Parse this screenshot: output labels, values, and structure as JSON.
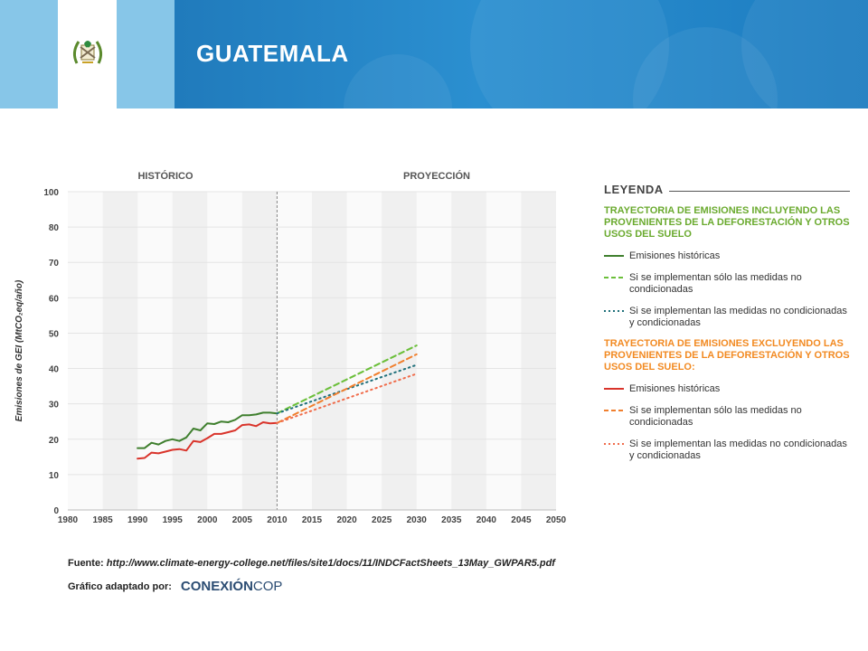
{
  "header": {
    "title": "GUATEMALA",
    "flag_colors": [
      "#87c6e8",
      "#ffffff"
    ],
    "emblem_icon": "coat-of-arms-icon"
  },
  "chart_data": {
    "type": "line",
    "section_labels": [
      "HISTÓRICO",
      "PROYECCIÓN"
    ],
    "divider_x": 2010,
    "ylabel": "Emisiones de GEI (MtCO₂eq/año)",
    "xlim": [
      1980,
      2050
    ],
    "x_ticks": [
      1980,
      1985,
      1990,
      1995,
      2000,
      2005,
      2010,
      2015,
      2020,
      2025,
      2030,
      2035,
      2040,
      2045,
      2050
    ],
    "y_tick_values": [
      0,
      10,
      20,
      30,
      40,
      50,
      60,
      70,
      80,
      100
    ],
    "series": [
      {
        "name": "Emisiones históricas",
        "group": 0,
        "color": "#3f7f2e",
        "style": "solid",
        "x": [
          1990,
          1991,
          1992,
          1993,
          1994,
          1995,
          1996,
          1997,
          1998,
          1999,
          2000,
          2001,
          2002,
          2003,
          2004,
          2005,
          2006,
          2007,
          2008,
          2009,
          2010
        ],
        "y": [
          17.5,
          17.5,
          19,
          18.5,
          19.5,
          20,
          19.5,
          20.5,
          23,
          22.5,
          24.5,
          24.3,
          25,
          24.8,
          25.5,
          26.8,
          26.8,
          27,
          27.5,
          27.5,
          27.3
        ]
      },
      {
        "name": "Si se implementan sólo las medidas no condicionadas",
        "group": 0,
        "color": "#6bbf3a",
        "style": "dashed",
        "x": [
          2010,
          2030
        ],
        "y": [
          27.3,
          46.5
        ]
      },
      {
        "name": "Si se implementan las medidas no condicionadas y condicionadas",
        "group": 0,
        "color": "#1e6f7a",
        "style": "dotted",
        "x": [
          2010,
          2030
        ],
        "y": [
          27.3,
          41
        ]
      },
      {
        "name": "Emisiones históricas",
        "group": 1,
        "color": "#d9342b",
        "style": "solid",
        "x": [
          1990,
          1991,
          1992,
          1993,
          1994,
          1995,
          1996,
          1997,
          1998,
          1999,
          2000,
          2001,
          2002,
          2003,
          2004,
          2005,
          2006,
          2007,
          2008,
          2009,
          2010
        ],
        "y": [
          14.5,
          14.7,
          16.2,
          16,
          16.5,
          17,
          17.2,
          16.8,
          19.5,
          19.2,
          20.3,
          21.5,
          21.5,
          22,
          22.5,
          24,
          24.2,
          23.7,
          24.8,
          24.5,
          24.6
        ]
      },
      {
        "name": "Si se implementan sólo las medidas no condicionadas",
        "group": 1,
        "color": "#f07f2e",
        "style": "dashed",
        "x": [
          2010,
          2030
        ],
        "y": [
          24.6,
          44
        ]
      },
      {
        "name": "Si se implementan las medidas no condicionadas y condicionadas",
        "group": 1,
        "color": "#f06b4a",
        "style": "dotted",
        "x": [
          2010,
          2030
        ],
        "y": [
          24.6,
          38.5
        ]
      }
    ]
  },
  "legend": {
    "title": "LEYENDA",
    "groups": [
      {
        "title": "TRAYECTORIA DE EMISIONES INCLUYENDO LAS PROVENIENTES DE LA DEFORESTACIÓN Y OTROS USOS DEL SUELO",
        "color": "#6aaa2e"
      },
      {
        "title": "TRAYECTORIA DE EMISIONES EXCLUYENDO LAS PROVENIENTES DE LA DEFORESTACIÓN Y OTROS USOS DEL SUELO:",
        "color": "#f28a22"
      }
    ]
  },
  "source": {
    "label": "Fuente:",
    "url": "http://www.climate-energy-college.net/files/site1/docs/11/INDCFactSheets_13May_GWPAR5.pdf"
  },
  "adapted": {
    "label": "Gráfico adaptado por:",
    "brand_bold": "CONEXIÓN",
    "brand_light": "COP"
  }
}
